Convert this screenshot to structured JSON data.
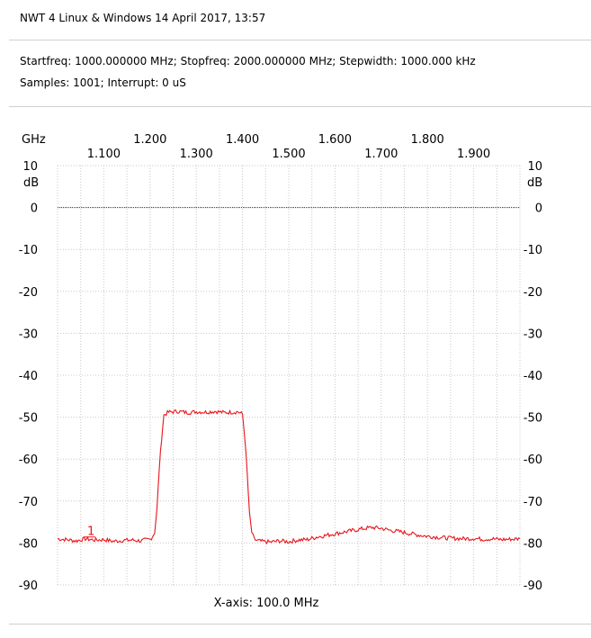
{
  "header": {
    "title": "NWT 4 Linux & Windows  14 April 2017, 13:57",
    "sweep_line": "Startfreq: 1000.000000 MHz; Stopfreq: 2000.000000 MHz; Stepwidth: 1000.000 kHz",
    "samples_line": "Samples: 1001; Interrupt:    0 uS"
  },
  "chart_data": {
    "type": "line",
    "x_unit": "GHz",
    "y_unit": "dB",
    "xlim": [
      1.0,
      2.0
    ],
    "ylim": [
      -90,
      10
    ],
    "x_ticks_upper": [
      "1.200",
      "1.400",
      "1.600",
      "1.800"
    ],
    "x_ticks_lower": [
      "1.100",
      "1.300",
      "1.500",
      "1.700",
      "1.900"
    ],
    "y_ticks": [
      "10",
      "0",
      "-10",
      "-20",
      "-30",
      "-40",
      "-50",
      "-60",
      "-70",
      "-80",
      "-90"
    ],
    "grid": true,
    "zero_line": 0,
    "xaxis_caption": "X-axis: 100.0 MHz",
    "trace_color": "#e8141b",
    "marker": {
      "label": "1",
      "x": 1.07,
      "y": -79
    },
    "series": [
      {
        "x": [
          1.0,
          1.02,
          1.04,
          1.06,
          1.08,
          1.1,
          1.12,
          1.14,
          1.16,
          1.18,
          1.2,
          1.205,
          1.21,
          1.215,
          1.22,
          1.225,
          1.23,
          1.24,
          1.26,
          1.28,
          1.3,
          1.32,
          1.34,
          1.36,
          1.38,
          1.39,
          1.4,
          1.405,
          1.41,
          1.415,
          1.42,
          1.425,
          1.43,
          1.44,
          1.46,
          1.48,
          1.5,
          1.52,
          1.54,
          1.56,
          1.58,
          1.6,
          1.62,
          1.64,
          1.66,
          1.68,
          1.7,
          1.72,
          1.74,
          1.76,
          1.78,
          1.8,
          1.82,
          1.84,
          1.86,
          1.88,
          1.9,
          1.92,
          1.94,
          1.96,
          1.98,
          2.0
        ],
        "y": [
          -79,
          -79.2,
          -79.5,
          -79,
          -79.3,
          -79.2,
          -79.6,
          -79.4,
          -79.3,
          -79.5,
          -79.1,
          -78.5,
          -77.5,
          -72,
          -62,
          -55,
          -49.5,
          -48.8,
          -48.6,
          -48.9,
          -48.7,
          -48.8,
          -48.6,
          -48.9,
          -48.8,
          -48.7,
          -49.3,
          -55,
          -63,
          -73,
          -77.5,
          -79,
          -79.4,
          -79.6,
          -79.8,
          -79.5,
          -79.7,
          -79.3,
          -79.2,
          -78.6,
          -78.2,
          -77.8,
          -77.4,
          -77.0,
          -76.6,
          -76.3,
          -76.5,
          -77.0,
          -77.3,
          -77.7,
          -78.1,
          -78.4,
          -78.6,
          -78.8,
          -78.9,
          -79.0,
          -78.9,
          -79.1,
          -79.0,
          -79.2,
          -79.1,
          -79.0
        ]
      }
    ]
  }
}
